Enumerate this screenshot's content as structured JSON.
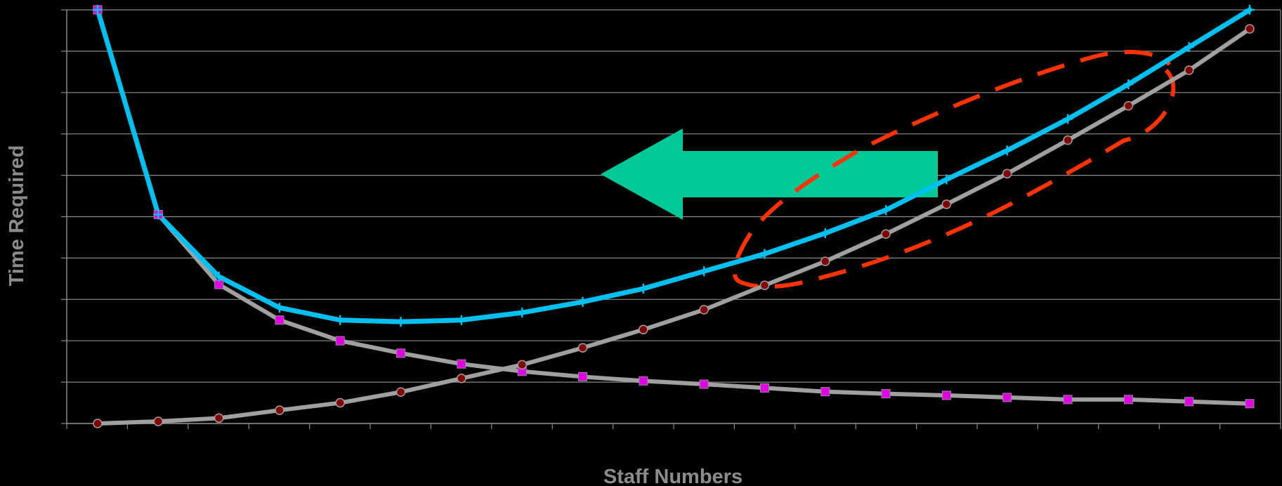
{
  "chart_data": {
    "type": "line",
    "title": "",
    "xlabel": "Staff Numbers",
    "ylabel": "Time Required",
    "ylim": [
      0,
      100
    ],
    "x": [
      1,
      2,
      3,
      4,
      5,
      6,
      7,
      8,
      9,
      10,
      11,
      12,
      13,
      14,
      15,
      16,
      17,
      18,
      19,
      20
    ],
    "grid": true,
    "series": [
      {
        "color": "#00c0f0",
        "marker": "plus",
        "values": [
          100,
          50.5,
          35.5,
          28,
          25,
          24.6,
          25,
          26.8,
          29.4,
          32.6,
          36.8,
          41,
          46,
          51.6,
          59,
          66,
          73.6,
          82,
          91,
          100
        ]
      },
      {
        "color": "#a0a0a0",
        "marker": "square",
        "marker_color": "#e000e0",
        "values": [
          100,
          50.5,
          33.6,
          25,
          20,
          17,
          14.4,
          12.6,
          11.3,
          10.3,
          9.5,
          8.6,
          7.7,
          7.2,
          6.8,
          6.3,
          5.8,
          5.8,
          5.3,
          4.8
        ]
      },
      {
        "color": "#a0a0a0",
        "marker": "circle",
        "marker_color": "#800000",
        "values": [
          0,
          0.5,
          1.3,
          3.2,
          5,
          7.6,
          10.9,
          14.2,
          18.3,
          22.7,
          27.5,
          33.4,
          39.2,
          45.8,
          53,
          60.4,
          68.5,
          76.8,
          85.4,
          95.4
        ]
      }
    ],
    "annotations": [
      {
        "type": "arrow",
        "direction": "left",
        "color": "#00c896"
      },
      {
        "type": "dashed-ellipse",
        "color": "#ff3300"
      }
    ]
  }
}
